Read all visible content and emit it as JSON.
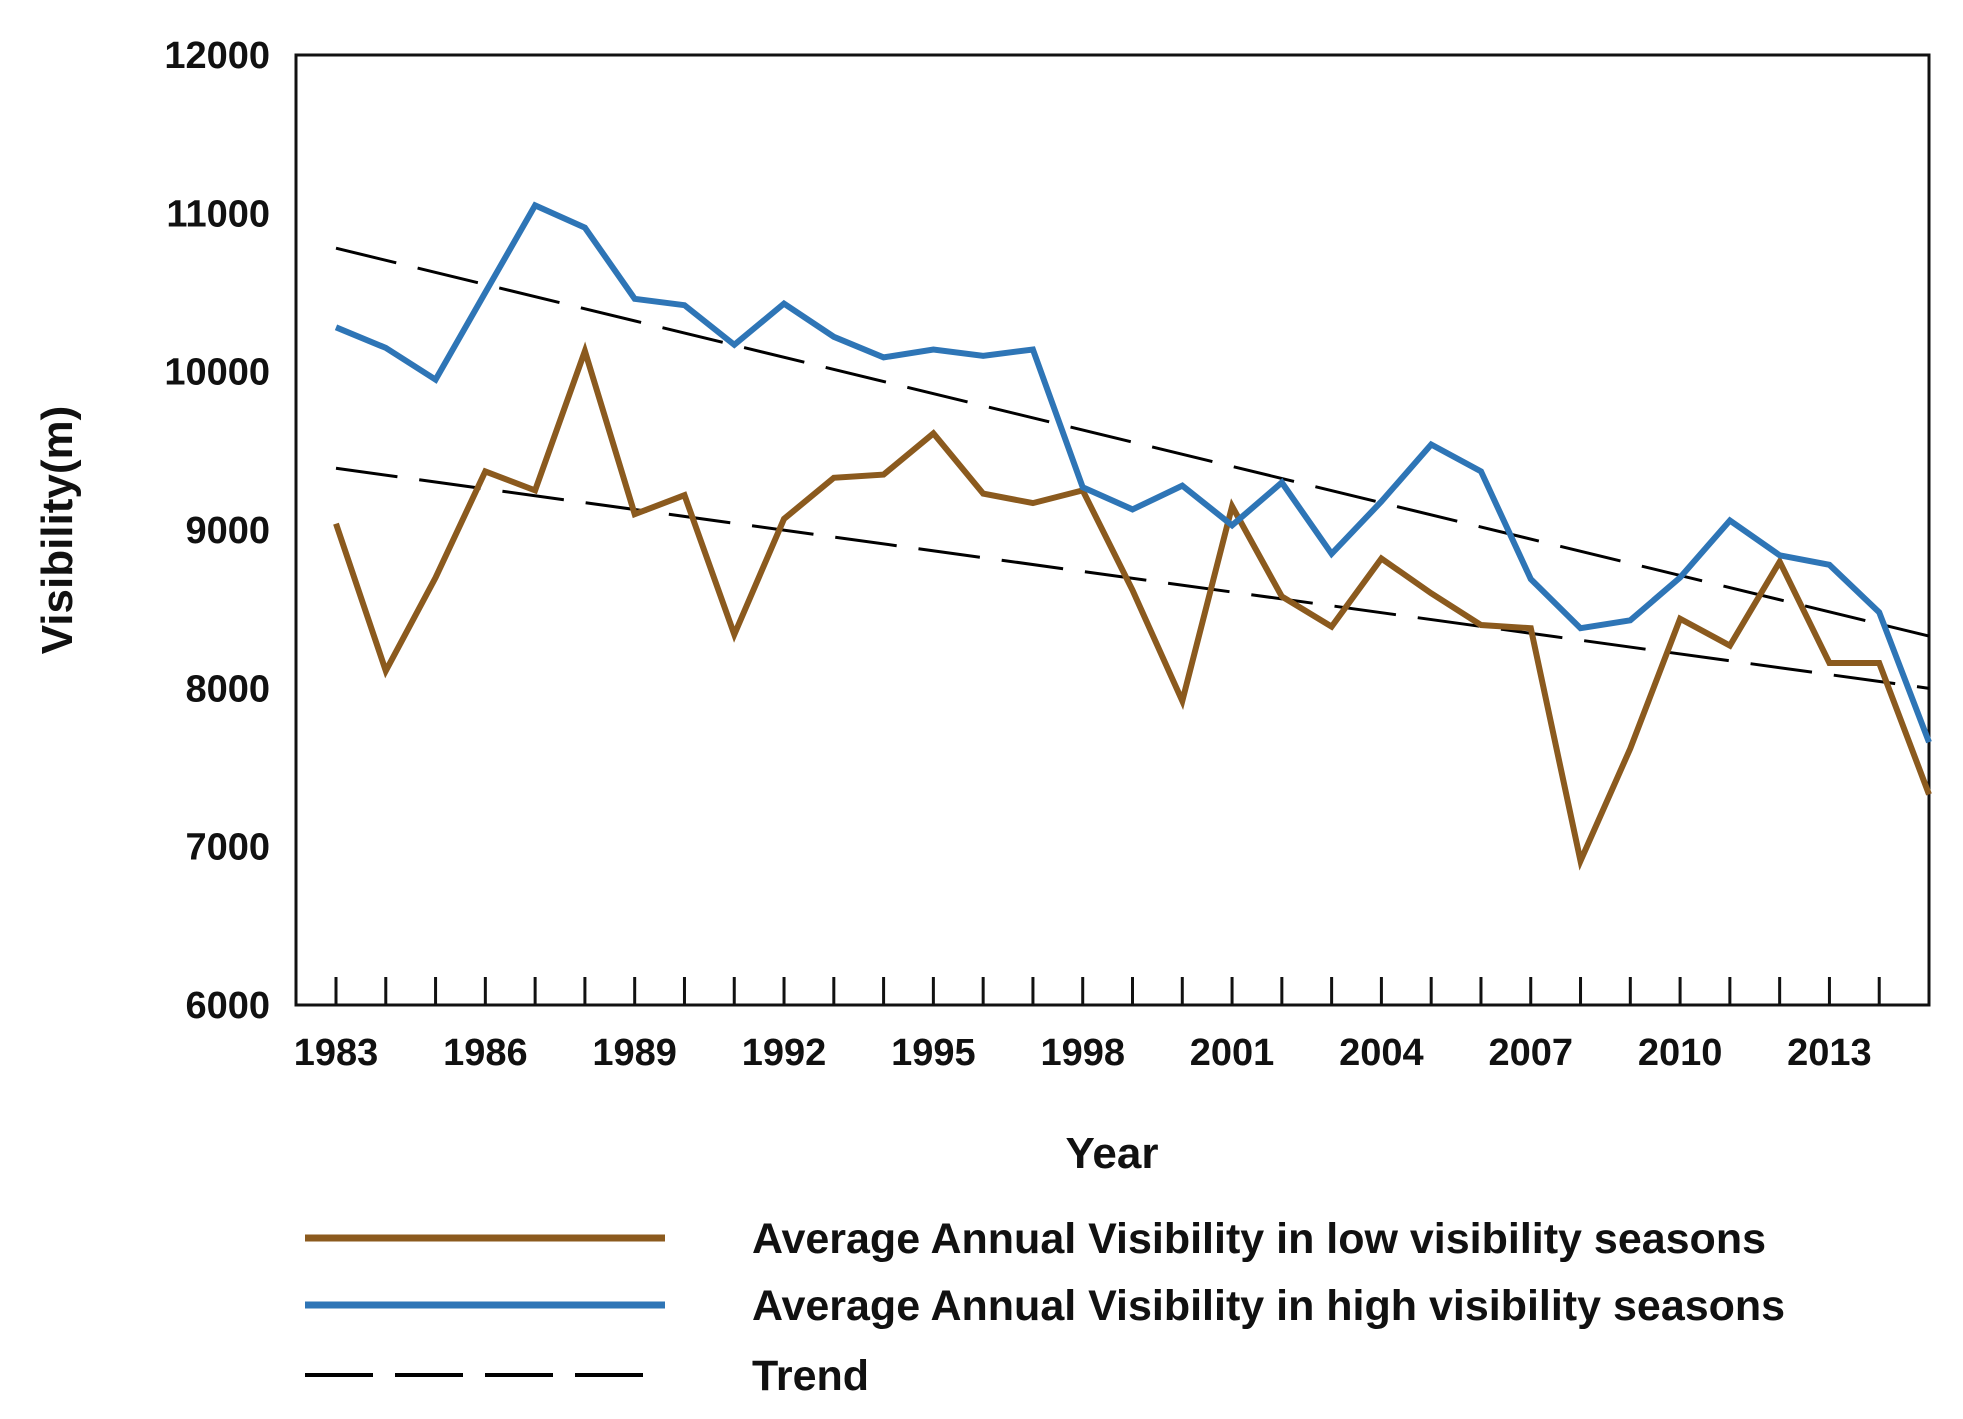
{
  "chart_data": {
    "type": "line",
    "title": "",
    "xlabel": "Year",
    "ylabel": "Visibility(m)",
    "xlim": [
      1983,
      2015
    ],
    "ylim": [
      6000,
      12000
    ],
    "yticks": [
      6000,
      7000,
      8000,
      9000,
      10000,
      11000,
      12000
    ],
    "xtick_labels": [
      "1983",
      "1986",
      "1989",
      "1992",
      "1995",
      "1998",
      "2001",
      "2004",
      "2007",
      "2010",
      "2013"
    ],
    "x": [
      1983,
      1984,
      1985,
      1986,
      1987,
      1988,
      1989,
      1990,
      1991,
      1992,
      1993,
      1994,
      1995,
      1996,
      1997,
      1998,
      1999,
      2000,
      2001,
      2002,
      2003,
      2004,
      2005,
      2006,
      2007,
      2008,
      2009,
      2010,
      2011,
      2012,
      2013,
      2014,
      2015
    ],
    "series": [
      {
        "name": "Average Annual Visibility in low visibility seasons",
        "color": "#8B5A1E",
        "values": [
          9040,
          8110,
          8700,
          9370,
          9250,
          10130,
          9100,
          9220,
          8340,
          9070,
          9330,
          9350,
          9610,
          9230,
          9170,
          9250,
          8620,
          7920,
          9150,
          8580,
          8390,
          8820,
          8600,
          8400,
          8380,
          6910,
          7620,
          8440,
          8270,
          8800,
          8160,
          8160,
          7330
        ]
      },
      {
        "name": "Average Annual Visibility in high visibility seasons",
        "color": "#2E75B6",
        "values": [
          10280,
          10150,
          9950,
          10500,
          11050,
          10910,
          10460,
          10420,
          10170,
          10430,
          10220,
          10090,
          10140,
          10100,
          10140,
          9270,
          9130,
          9280,
          9030,
          9300,
          8850,
          9180,
          9540,
          9370,
          8690,
          8380,
          8430,
          8700,
          9060,
          8840,
          8780,
          8480,
          7660
        ]
      },
      {
        "name": "Trend",
        "style": "dashed",
        "color": "#000000",
        "lines": [
          {
            "x": [
              1983,
              2015
            ],
            "values": [
              10780,
              8330
            ]
          },
          {
            "x": [
              1983,
              2015
            ],
            "values": [
              9390,
              8000
            ]
          }
        ]
      }
    ],
    "legend": {
      "position": "bottom",
      "entries": [
        {
          "label": "Average Annual Visibility in low visibility seasons",
          "color": "#8B5A1E",
          "style": "solid"
        },
        {
          "label": "Average Annual Visibility in high visibility seasons",
          "color": "#2E75B6",
          "style": "solid"
        },
        {
          "label": "Trend",
          "color": "#000000",
          "style": "dashed"
        }
      ]
    }
  }
}
